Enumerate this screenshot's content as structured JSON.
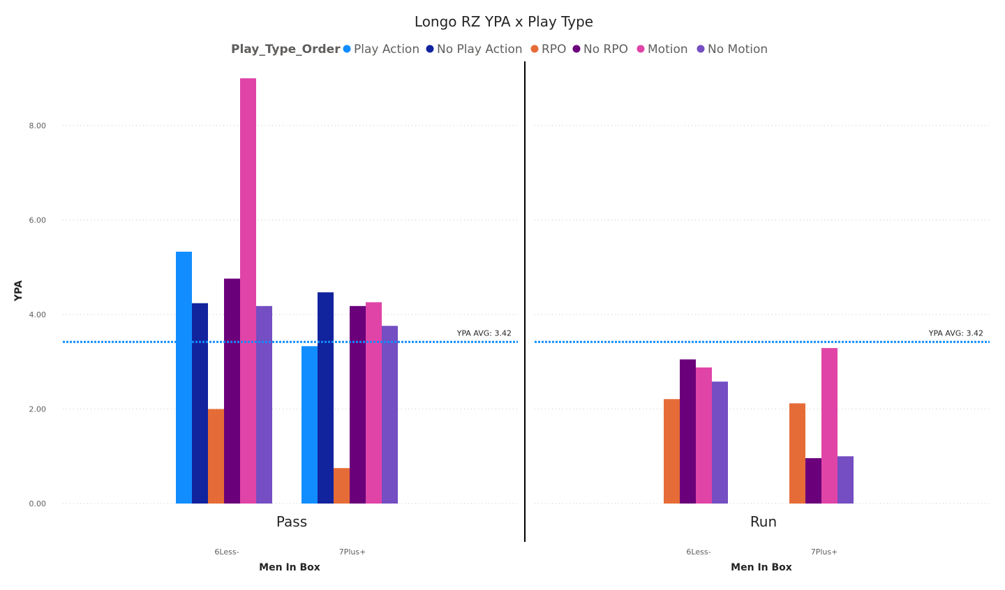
{
  "chart_data": {
    "type": "bar",
    "title": "Longo RZ YPA x Play Type",
    "legend": {
      "title": "Play_Type_Order",
      "position": "top-center"
    },
    "ylabel": "YPA",
    "xlabel": "Men In Box",
    "ylim": [
      0,
      9.0
    ],
    "yticks": [
      "0.00",
      "2.00",
      "4.00",
      "6.00",
      "8.00"
    ],
    "ytick_values": [
      0,
      2,
      4,
      6,
      8
    ],
    "grid": true,
    "reference_line": {
      "label": "YPA AVG: 3.42",
      "value": 3.42,
      "color": "#118dff"
    },
    "series": [
      {
        "name": "Play Action",
        "color": "#118dff"
      },
      {
        "name": "No Play Action",
        "color": "#12239e"
      },
      {
        "name": "RPO",
        "color": "#e66c37"
      },
      {
        "name": "No RPO",
        "color": "#6b007b"
      },
      {
        "name": "Motion",
        "color": "#e044a7"
      },
      {
        "name": "No Motion",
        "color": "#744ec2"
      }
    ],
    "panels": [
      {
        "name": "Pass",
        "categories": [
          "6Less-",
          "7Plus+"
        ],
        "values": {
          "Play Action": [
            5.33,
            3.33
          ],
          "No Play Action": [
            4.24,
            4.47
          ],
          "RPO": [
            2.0,
            0.75
          ],
          "No RPO": [
            4.76,
            4.18
          ],
          "Motion": [
            9.0,
            4.26
          ],
          "No Motion": [
            4.18,
            3.76
          ]
        }
      },
      {
        "name": "Run",
        "categories": [
          "6Less-",
          "7Plus+"
        ],
        "values": {
          "Play Action": [
            null,
            null
          ],
          "No Play Action": [
            null,
            null
          ],
          "RPO": [
            2.21,
            2.12
          ],
          "No RPO": [
            3.05,
            0.96
          ],
          "Motion": [
            2.88,
            3.29
          ],
          "No Motion": [
            2.58,
            1.0
          ]
        }
      }
    ]
  }
}
